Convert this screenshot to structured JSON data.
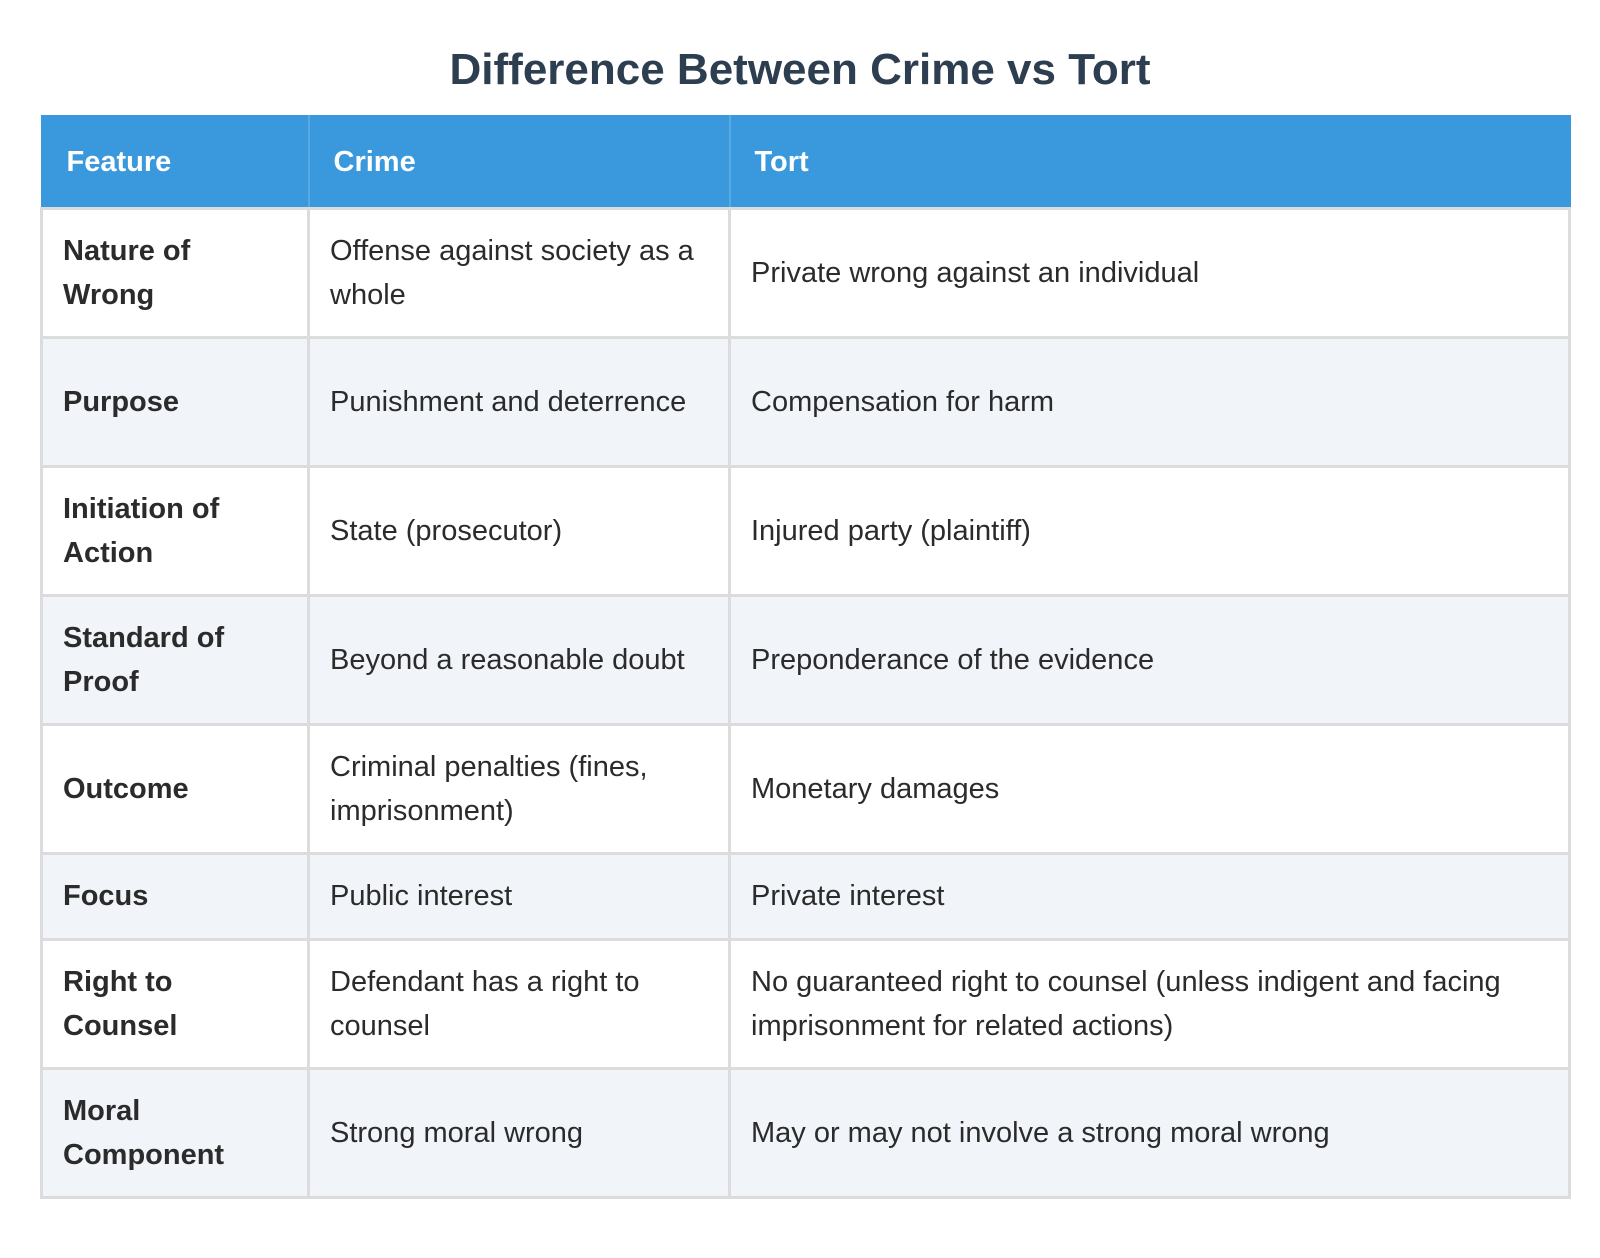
{
  "title": "Difference Between Crime vs Tort",
  "table": {
    "headers": [
      "Feature",
      "Crime",
      "Tort"
    ],
    "rows": [
      {
        "feature": "Nature of Wrong",
        "crime": "Offense against society as a whole",
        "tort": "Private wrong against an individual"
      },
      {
        "feature": "Purpose",
        "crime": "Punishment and deterrence",
        "tort": "Compensation for harm"
      },
      {
        "feature": "Initiation of Action",
        "crime": "State (prosecutor)",
        "tort": "Injured party (plaintiff)"
      },
      {
        "feature": "Standard of Proof",
        "crime": "Beyond a reasonable doubt",
        "tort": "Preponderance of the evidence"
      },
      {
        "feature": "Outcome",
        "crime": "Criminal penalties (fines, imprisonment)",
        "tort": "Monetary damages"
      },
      {
        "feature": "Focus",
        "crime": "Public interest",
        "tort": "Private interest"
      },
      {
        "feature": "Right to Counsel",
        "crime": "Defendant has a right to counsel",
        "tort": "No guaranteed right to counsel (unless indigent and facing imprisonment for related actions)"
      },
      {
        "feature": "Moral Component",
        "crime": "Strong moral wrong",
        "tort": "May or may not involve a strong moral wrong"
      }
    ]
  },
  "colors": {
    "title": "#2d3e50",
    "header_bg": "#3a99dc",
    "header_text": "#ffffff",
    "row_alt_bg": "#f1f4f9",
    "border": "#dcdcdc"
  }
}
